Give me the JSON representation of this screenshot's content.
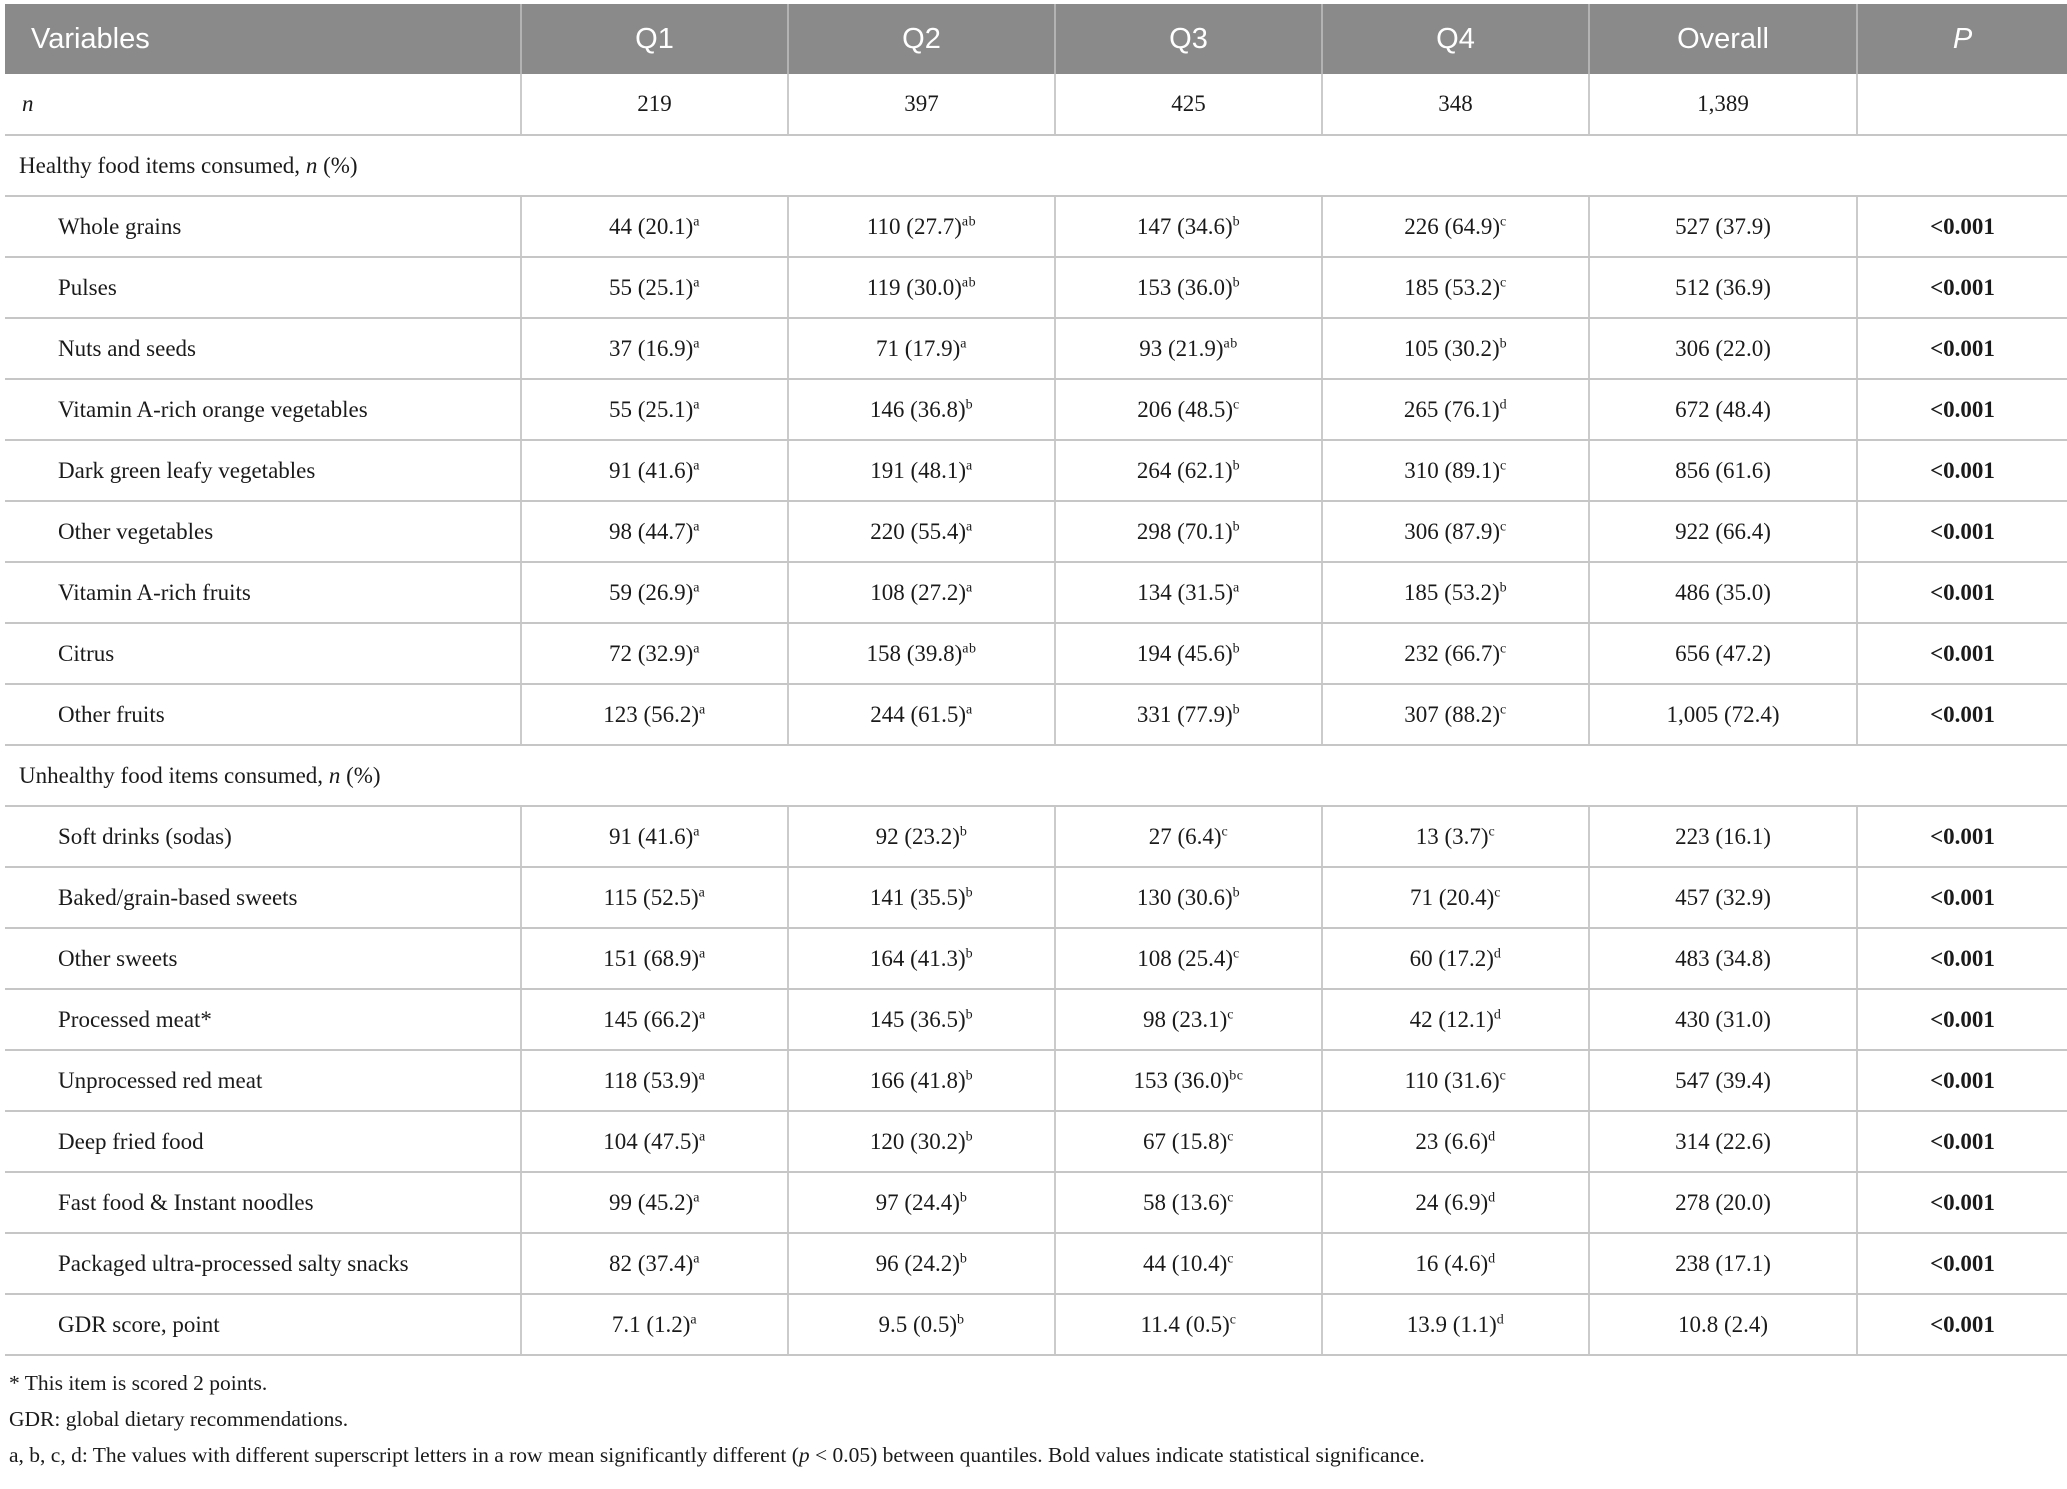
{
  "colors": {
    "header_bg": "#8a8a8a",
    "header_text": "#ffffff",
    "grid_line": "#c6c6c6",
    "body_text": "#1a1a1a"
  },
  "table": {
    "columns": [
      {
        "label": "Variables",
        "italic": false
      },
      {
        "label": "Q1",
        "italic": false
      },
      {
        "label": "Q2",
        "italic": false
      },
      {
        "label": "Q3",
        "italic": false
      },
      {
        "label": "Q4",
        "italic": false
      },
      {
        "label": "Overall",
        "italic": false
      },
      {
        "label": "P",
        "italic": true
      }
    ],
    "rows": [
      {
        "type": "data",
        "indent": false,
        "segments": [
          {
            "t": "n",
            "i": true
          }
        ],
        "cells": [
          {
            "t": "219"
          },
          {
            "t": "397"
          },
          {
            "t": "425"
          },
          {
            "t": "348"
          },
          {
            "t": "1,389"
          },
          {
            "t": ""
          }
        ]
      },
      {
        "type": "section",
        "segments": [
          {
            "t": "Healthy food items consumed, "
          },
          {
            "t": "n",
            "i": true
          },
          {
            "t": " (%)"
          }
        ]
      },
      {
        "type": "data",
        "indent": true,
        "segments": [
          {
            "t": "Whole grains"
          }
        ],
        "cells": [
          {
            "t": "44 (20.1)",
            "sup": "a"
          },
          {
            "t": "110 (27.7)",
            "sup": "ab"
          },
          {
            "t": "147 (34.6)",
            "sup": "b"
          },
          {
            "t": "226 (64.9)",
            "sup": "c"
          },
          {
            "t": "527 (37.9)"
          },
          {
            "t": "<0.001",
            "b": true
          }
        ]
      },
      {
        "type": "data",
        "indent": true,
        "segments": [
          {
            "t": "Pulses"
          }
        ],
        "cells": [
          {
            "t": "55 (25.1)",
            "sup": "a"
          },
          {
            "t": "119 (30.0)",
            "sup": "ab"
          },
          {
            "t": "153 (36.0)",
            "sup": "b"
          },
          {
            "t": "185 (53.2)",
            "sup": "c"
          },
          {
            "t": "512 (36.9)"
          },
          {
            "t": "<0.001",
            "b": true
          }
        ]
      },
      {
        "type": "data",
        "indent": true,
        "segments": [
          {
            "t": "Nuts and seeds"
          }
        ],
        "cells": [
          {
            "t": "37 (16.9)",
            "sup": "a"
          },
          {
            "t": "71 (17.9)",
            "sup": "a"
          },
          {
            "t": "93 (21.9)",
            "sup": "ab"
          },
          {
            "t": "105 (30.2)",
            "sup": "b"
          },
          {
            "t": "306 (22.0)"
          },
          {
            "t": "<0.001",
            "b": true
          }
        ]
      },
      {
        "type": "data",
        "indent": true,
        "segments": [
          {
            "t": "Vitamin A-rich orange vegetables"
          }
        ],
        "cells": [
          {
            "t": "55 (25.1)",
            "sup": "a"
          },
          {
            "t": "146 (36.8)",
            "sup": "b"
          },
          {
            "t": "206 (48.5)",
            "sup": "c"
          },
          {
            "t": "265 (76.1)",
            "sup": "d"
          },
          {
            "t": "672 (48.4)"
          },
          {
            "t": "<0.001",
            "b": true
          }
        ]
      },
      {
        "type": "data",
        "indent": true,
        "segments": [
          {
            "t": "Dark green leafy vegetables"
          }
        ],
        "cells": [
          {
            "t": "91 (41.6)",
            "sup": "a"
          },
          {
            "t": "191 (48.1)",
            "sup": "a"
          },
          {
            "t": "264 (62.1)",
            "sup": "b"
          },
          {
            "t": "310 (89.1)",
            "sup": "c"
          },
          {
            "t": "856 (61.6)"
          },
          {
            "t": "<0.001",
            "b": true
          }
        ]
      },
      {
        "type": "data",
        "indent": true,
        "segments": [
          {
            "t": "Other vegetables"
          }
        ],
        "cells": [
          {
            "t": "98 (44.7)",
            "sup": "a"
          },
          {
            "t": "220 (55.4)",
            "sup": "a"
          },
          {
            "t": "298 (70.1)",
            "sup": "b"
          },
          {
            "t": "306 (87.9)",
            "sup": "c"
          },
          {
            "t": "922 (66.4)"
          },
          {
            "t": "<0.001",
            "b": true
          }
        ]
      },
      {
        "type": "data",
        "indent": true,
        "segments": [
          {
            "t": "Vitamin A-rich fruits"
          }
        ],
        "cells": [
          {
            "t": "59 (26.9)",
            "sup": "a"
          },
          {
            "t": "108 (27.2)",
            "sup": "a"
          },
          {
            "t": "134 (31.5)",
            "sup": "a"
          },
          {
            "t": "185 (53.2)",
            "sup": "b"
          },
          {
            "t": "486 (35.0)"
          },
          {
            "t": "<0.001",
            "b": true
          }
        ]
      },
      {
        "type": "data",
        "indent": true,
        "segments": [
          {
            "t": "Citrus"
          }
        ],
        "cells": [
          {
            "t": "72 (32.9)",
            "sup": "a"
          },
          {
            "t": "158 (39.8)",
            "sup": "ab"
          },
          {
            "t": "194 (45.6)",
            "sup": "b"
          },
          {
            "t": "232 (66.7)",
            "sup": "c"
          },
          {
            "t": "656 (47.2)"
          },
          {
            "t": "<0.001",
            "b": true
          }
        ]
      },
      {
        "type": "data",
        "indent": true,
        "segments": [
          {
            "t": "Other fruits"
          }
        ],
        "cells": [
          {
            "t": "123 (56.2)",
            "sup": "a"
          },
          {
            "t": "244 (61.5)",
            "sup": "a"
          },
          {
            "t": "331 (77.9)",
            "sup": "b"
          },
          {
            "t": "307 (88.2)",
            "sup": "c"
          },
          {
            "t": "1,005 (72.4)"
          },
          {
            "t": "<0.001",
            "b": true
          }
        ]
      },
      {
        "type": "section",
        "segments": [
          {
            "t": "Unhealthy food items consumed, "
          },
          {
            "t": "n",
            "i": true
          },
          {
            "t": " (%)"
          }
        ]
      },
      {
        "type": "data",
        "indent": true,
        "segments": [
          {
            "t": "Soft drinks (sodas)"
          }
        ],
        "cells": [
          {
            "t": "91 (41.6)",
            "sup": "a"
          },
          {
            "t": "92 (23.2)",
            "sup": "b"
          },
          {
            "t": "27 (6.4)",
            "sup": "c"
          },
          {
            "t": "13 (3.7)",
            "sup": "c"
          },
          {
            "t": "223 (16.1)"
          },
          {
            "t": "<0.001",
            "b": true
          }
        ]
      },
      {
        "type": "data",
        "indent": true,
        "segments": [
          {
            "t": "Baked/grain-based sweets"
          }
        ],
        "cells": [
          {
            "t": "115 (52.5)",
            "sup": "a"
          },
          {
            "t": "141 (35.5)",
            "sup": "b"
          },
          {
            "t": "130 (30.6)",
            "sup": "b"
          },
          {
            "t": "71 (20.4)",
            "sup": "c"
          },
          {
            "t": "457 (32.9)"
          },
          {
            "t": "<0.001",
            "b": true
          }
        ]
      },
      {
        "type": "data",
        "indent": true,
        "segments": [
          {
            "t": "Other sweets"
          }
        ],
        "cells": [
          {
            "t": "151 (68.9)",
            "sup": "a"
          },
          {
            "t": "164 (41.3)",
            "sup": "b"
          },
          {
            "t": "108 (25.4)",
            "sup": "c"
          },
          {
            "t": "60 (17.2)",
            "sup": "d"
          },
          {
            "t": "483 (34.8)"
          },
          {
            "t": "<0.001",
            "b": true
          }
        ]
      },
      {
        "type": "data",
        "indent": true,
        "segments": [
          {
            "t": "Processed meat*"
          }
        ],
        "cells": [
          {
            "t": "145 (66.2)",
            "sup": "a"
          },
          {
            "t": "145 (36.5)",
            "sup": "b"
          },
          {
            "t": "98 (23.1)",
            "sup": "c"
          },
          {
            "t": "42 (12.1)",
            "sup": "d"
          },
          {
            "t": "430 (31.0)"
          },
          {
            "t": "<0.001",
            "b": true
          }
        ]
      },
      {
        "type": "data",
        "indent": true,
        "segments": [
          {
            "t": "Unprocessed red meat"
          }
        ],
        "cells": [
          {
            "t": "118 (53.9)",
            "sup": "a"
          },
          {
            "t": "166 (41.8)",
            "sup": "b"
          },
          {
            "t": "153 (36.0)",
            "sup": "bc"
          },
          {
            "t": "110 (31.6)",
            "sup": "c"
          },
          {
            "t": "547 (39.4)"
          },
          {
            "t": "<0.001",
            "b": true
          }
        ]
      },
      {
        "type": "data",
        "indent": true,
        "segments": [
          {
            "t": "Deep fried food"
          }
        ],
        "cells": [
          {
            "t": "104 (47.5)",
            "sup": "a"
          },
          {
            "t": "120 (30.2)",
            "sup": "b"
          },
          {
            "t": "67 (15.8)",
            "sup": "c"
          },
          {
            "t": "23 (6.6)",
            "sup": "d"
          },
          {
            "t": "314 (22.6)"
          },
          {
            "t": "<0.001",
            "b": true
          }
        ]
      },
      {
        "type": "data",
        "indent": true,
        "segments": [
          {
            "t": "Fast food & Instant noodles"
          }
        ],
        "cells": [
          {
            "t": "99 (45.2)",
            "sup": "a"
          },
          {
            "t": "97 (24.4)",
            "sup": "b"
          },
          {
            "t": "58 (13.6)",
            "sup": "c"
          },
          {
            "t": "24 (6.9)",
            "sup": "d"
          },
          {
            "t": "278 (20.0)"
          },
          {
            "t": "<0.001",
            "b": true
          }
        ]
      },
      {
        "type": "data",
        "indent": true,
        "segments": [
          {
            "t": "Packaged ultra-processed salty snacks"
          }
        ],
        "cells": [
          {
            "t": "82 (37.4)",
            "sup": "a"
          },
          {
            "t": "96 (24.2)",
            "sup": "b"
          },
          {
            "t": "44 (10.4)",
            "sup": "c"
          },
          {
            "t": "16 (4.6)",
            "sup": "d"
          },
          {
            "t": "238 (17.1)"
          },
          {
            "t": "<0.001",
            "b": true
          }
        ]
      },
      {
        "type": "data",
        "indent": true,
        "segments": [
          {
            "t": "GDR score, point"
          }
        ],
        "cells": [
          {
            "t": "7.1 (1.2)",
            "sup": "a"
          },
          {
            "t": "9.5 (0.5)",
            "sup": "b"
          },
          {
            "t": "11.4 (0.5)",
            "sup": "c"
          },
          {
            "t": "13.9 (1.1)",
            "sup": "d"
          },
          {
            "t": "10.8 (2.4)"
          },
          {
            "t": "<0.001",
            "b": true
          }
        ]
      }
    ]
  },
  "footnotes": [
    [
      {
        "t": "* This item is scored 2 points."
      }
    ],
    [
      {
        "t": "GDR: global dietary recommendations."
      }
    ],
    [
      {
        "t": "a, b, c, d: The values with different superscript letters in a row mean significantly different ("
      },
      {
        "t": "p",
        "i": true
      },
      {
        "t": " < 0.05) between quantiles. Bold values indicate statistical significance."
      }
    ]
  ]
}
